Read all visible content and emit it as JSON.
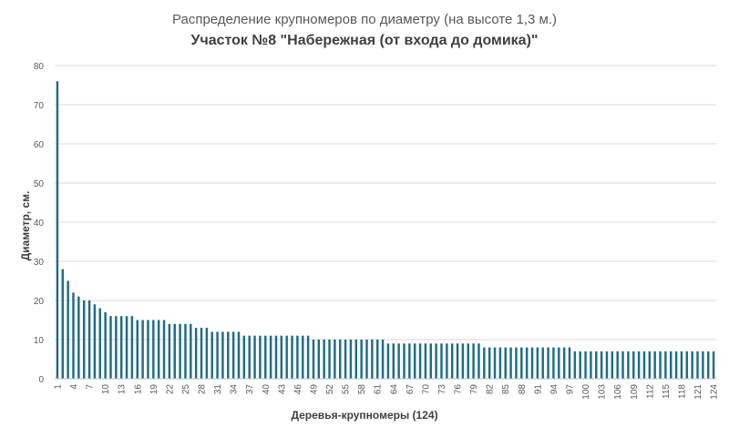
{
  "chart_data": {
    "type": "bar",
    "title": "Распределение крупномеров по диаметру (на высоте 1,3 м.)",
    "subtitle": "Участок №8 \"Набережная (от входа до домика)\"",
    "xlabel": "Деревья-крупномеры (124)",
    "ylabel": "Диаметр, см.",
    "ylim": [
      0,
      80
    ],
    "yticks": [
      0,
      10,
      20,
      30,
      40,
      50,
      60,
      70,
      80
    ],
    "xtick_labels": [
      "1",
      "4",
      "7",
      "10",
      "13",
      "16",
      "19",
      "22",
      "25",
      "28",
      "31",
      "34",
      "37",
      "40",
      "43",
      "46",
      "49",
      "52",
      "55",
      "58",
      "61",
      "64",
      "67",
      "70",
      "73",
      "76",
      "79",
      "82",
      "85",
      "88",
      "91",
      "94",
      "97",
      "100",
      "103",
      "106",
      "109",
      "112",
      "115",
      "118",
      "121",
      "124"
    ],
    "grid": true,
    "bar_color": "#1f6b8a",
    "categories": [
      "1",
      "2",
      "3",
      "4",
      "5",
      "6",
      "7",
      "8",
      "9",
      "10",
      "11",
      "12",
      "13",
      "14",
      "15",
      "16",
      "17",
      "18",
      "19",
      "20",
      "21",
      "22",
      "23",
      "24",
      "25",
      "26",
      "27",
      "28",
      "29",
      "30",
      "31",
      "32",
      "33",
      "34",
      "35",
      "36",
      "37",
      "38",
      "39",
      "40",
      "41",
      "42",
      "43",
      "44",
      "45",
      "46",
      "47",
      "48",
      "49",
      "50",
      "51",
      "52",
      "53",
      "54",
      "55",
      "56",
      "57",
      "58",
      "59",
      "60",
      "61",
      "62",
      "63",
      "64",
      "65",
      "66",
      "67",
      "68",
      "69",
      "70",
      "71",
      "72",
      "73",
      "74",
      "75",
      "76",
      "77",
      "78",
      "79",
      "80",
      "81",
      "82",
      "83",
      "84",
      "85",
      "86",
      "87",
      "88",
      "89",
      "90",
      "91",
      "92",
      "93",
      "94",
      "95",
      "96",
      "97",
      "98",
      "99",
      "100",
      "101",
      "102",
      "103",
      "104",
      "105",
      "106",
      "107",
      "108",
      "109",
      "110",
      "111",
      "112",
      "113",
      "114",
      "115",
      "116",
      "117",
      "118",
      "119",
      "120",
      "121",
      "122",
      "123",
      "124"
    ],
    "values": [
      76,
      28,
      25,
      22,
      21,
      20,
      20,
      19,
      18,
      17,
      16,
      16,
      16,
      16,
      16,
      15,
      15,
      15,
      15,
      15,
      15,
      14,
      14,
      14,
      14,
      14,
      13,
      13,
      13,
      12,
      12,
      12,
      12,
      12,
      12,
      11,
      11,
      11,
      11,
      11,
      11,
      11,
      11,
      11,
      11,
      11,
      11,
      11,
      10,
      10,
      10,
      10,
      10,
      10,
      10,
      10,
      10,
      10,
      10,
      10,
      10,
      10,
      9,
      9,
      9,
      9,
      9,
      9,
      9,
      9,
      9,
      9,
      9,
      9,
      9,
      9,
      9,
      9,
      9,
      9,
      8,
      8,
      8,
      8,
      8,
      8,
      8,
      8,
      8,
      8,
      8,
      8,
      8,
      8,
      8,
      8,
      8,
      7,
      7,
      7,
      7,
      7,
      7,
      7,
      7,
      7,
      7,
      7,
      7,
      7,
      7,
      7,
      7,
      7,
      7,
      7,
      7,
      7,
      7,
      7,
      7,
      7,
      7,
      7
    ]
  }
}
